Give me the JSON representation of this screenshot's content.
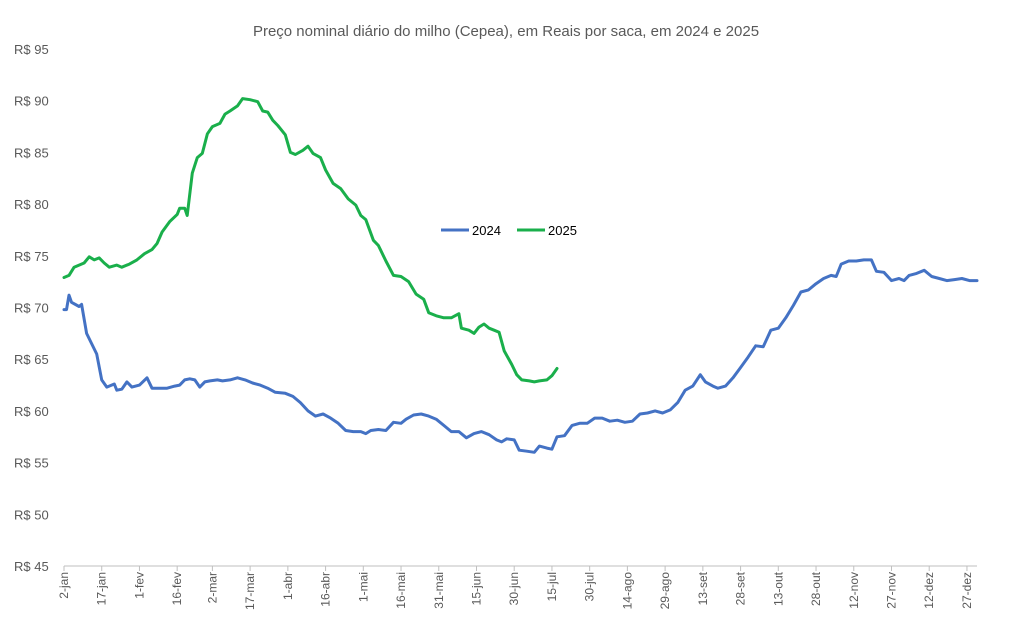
{
  "chart_data": {
    "type": "line",
    "title": "Preço nominal diário do milho (Cepea), em Reais por saca, em 2024 e 2025",
    "xlabel": "",
    "ylabel": "",
    "ylim": [
      45,
      95
    ],
    "y_ticks": [
      95,
      90,
      85,
      80,
      75,
      70,
      65,
      60,
      55,
      50,
      45
    ],
    "y_tick_prefix": "R$ ",
    "x_axis": "day of year (2-jan to 31-dez)",
    "x_ticks": [
      "2-jan",
      "17-jan",
      "1-fev",
      "16-fev",
      "2-mar",
      "17-mar",
      "1-abr",
      "16-abr",
      "1-mai",
      "16-mai",
      "31-mai",
      "15-jun",
      "30-jun",
      "15-jul",
      "30-jul",
      "14-ago",
      "29-ago",
      "13-set",
      "28-set",
      "13-out",
      "28-out",
      "12-nov",
      "27-nov",
      "12-dez",
      "27-dez"
    ],
    "legend_position": "center",
    "grid": false,
    "series": [
      {
        "name": "2024",
        "color": "#4472C4",
        "points": [
          [
            "2-jan",
            69.8
          ],
          [
            "3-jan",
            69.8
          ],
          [
            "4-jan",
            71.2
          ],
          [
            "5-jan",
            70.5
          ],
          [
            "8-jan",
            70.1
          ],
          [
            "9-jan",
            70.3
          ],
          [
            "11-jan",
            67.5
          ],
          [
            "15-jan",
            65.5
          ],
          [
            "17-jan",
            63.0
          ],
          [
            "19-jan",
            62.3
          ],
          [
            "22-jan",
            62.6
          ],
          [
            "23-jan",
            62.0
          ],
          [
            "25-jan",
            62.1
          ],
          [
            "27-jan",
            62.8
          ],
          [
            "29-jan",
            62.3
          ],
          [
            "1-fev",
            62.5
          ],
          [
            "4-fev",
            63.2
          ],
          [
            "6-fev",
            62.2
          ],
          [
            "9-fev",
            62.2
          ],
          [
            "12-fev",
            62.2
          ],
          [
            "15-fev",
            62.4
          ],
          [
            "17-fev",
            62.5
          ],
          [
            "19-fev",
            63.0
          ],
          [
            "21-fev",
            63.1
          ],
          [
            "23-fev",
            63.0
          ],
          [
            "25-fev",
            62.3
          ],
          [
            "27-fev",
            62.8
          ],
          [
            "1-mar",
            62.9
          ],
          [
            "4-mar",
            63.0
          ],
          [
            "6-mar",
            62.9
          ],
          [
            "9-mar",
            63.0
          ],
          [
            "12-mar",
            63.2
          ],
          [
            "15-mar",
            63.0
          ],
          [
            "18-mar",
            62.7
          ],
          [
            "21-mar",
            62.5
          ],
          [
            "24-mar",
            62.2
          ],
          [
            "27-mar",
            61.8
          ],
          [
            "31-mar",
            61.7
          ],
          [
            "3-abr",
            61.4
          ],
          [
            "6-abr",
            60.8
          ],
          [
            "9-abr",
            60.0
          ],
          [
            "12-abr",
            59.5
          ],
          [
            "15-abr",
            59.7
          ],
          [
            "18-abr",
            59.3
          ],
          [
            "21-abr",
            58.8
          ],
          [
            "24-abr",
            58.1
          ],
          [
            "27-abr",
            58.0
          ],
          [
            "30-abr",
            58.0
          ],
          [
            "2-mai",
            57.8
          ],
          [
            "4-mai",
            58.1
          ],
          [
            "7-mai",
            58.2
          ],
          [
            "10-mai",
            58.1
          ],
          [
            "13-mai",
            58.9
          ],
          [
            "16-mai",
            58.8
          ],
          [
            "18-mai",
            59.2
          ],
          [
            "21-mai",
            59.6
          ],
          [
            "24-mai",
            59.7
          ],
          [
            "27-mai",
            59.5
          ],
          [
            "30-mai",
            59.2
          ],
          [
            "2-jun",
            58.6
          ],
          [
            "5-jun",
            58.0
          ],
          [
            "8-jun",
            58.0
          ],
          [
            "11-jun",
            57.4
          ],
          [
            "14-jun",
            57.8
          ],
          [
            "17-jun",
            58.0
          ],
          [
            "20-jun",
            57.7
          ],
          [
            "23-jun",
            57.2
          ],
          [
            "25-jun",
            57.0
          ],
          [
            "27-jun",
            57.3
          ],
          [
            "30-jun",
            57.2
          ],
          [
            "2-jul",
            56.2
          ],
          [
            "5-jul",
            56.1
          ],
          [
            "8-jul",
            56.0
          ],
          [
            "10-jul",
            56.6
          ],
          [
            "13-jul",
            56.4
          ],
          [
            "15-jul",
            56.3
          ],
          [
            "17-jul",
            57.5
          ],
          [
            "20-jul",
            57.6
          ],
          [
            "23-jul",
            58.6
          ],
          [
            "26-jul",
            58.8
          ],
          [
            "29-jul",
            58.8
          ],
          [
            "1-ago",
            59.3
          ],
          [
            "4-ago",
            59.3
          ],
          [
            "7-ago",
            59.0
          ],
          [
            "10-ago",
            59.1
          ],
          [
            "13-ago",
            58.9
          ],
          [
            "16-ago",
            59.0
          ],
          [
            "19-ago",
            59.7
          ],
          [
            "22-ago",
            59.8
          ],
          [
            "25-ago",
            60.0
          ],
          [
            "28-ago",
            59.8
          ],
          [
            "31-ago",
            60.1
          ],
          [
            "3-set",
            60.8
          ],
          [
            "6-set",
            62.0
          ],
          [
            "9-set",
            62.4
          ],
          [
            "12-set",
            63.5
          ],
          [
            "14-set",
            62.8
          ],
          [
            "17-set",
            62.4
          ],
          [
            "19-set",
            62.2
          ],
          [
            "22-set",
            62.4
          ],
          [
            "25-set",
            63.2
          ],
          [
            "28-set",
            64.2
          ],
          [
            "1-out",
            65.2
          ],
          [
            "4-out",
            66.3
          ],
          [
            "7-out",
            66.2
          ],
          [
            "10-out",
            67.8
          ],
          [
            "13-out",
            68.0
          ],
          [
            "16-out",
            69.0
          ],
          [
            "19-out",
            70.2
          ],
          [
            "22-out",
            71.5
          ],
          [
            "25-out",
            71.7
          ],
          [
            "28-out",
            72.3
          ],
          [
            "31-out",
            72.8
          ],
          [
            "3-nov",
            73.1
          ],
          [
            "5-nov",
            73.0
          ],
          [
            "7-nov",
            74.2
          ],
          [
            "10-nov",
            74.5
          ],
          [
            "13-nov",
            74.5
          ],
          [
            "16-nov",
            74.6
          ],
          [
            "19-nov",
            74.6
          ],
          [
            "21-nov",
            73.5
          ],
          [
            "24-nov",
            73.4
          ],
          [
            "27-nov",
            72.6
          ],
          [
            "30-nov",
            72.8
          ],
          [
            "2-dez",
            72.6
          ],
          [
            "4-dez",
            73.1
          ],
          [
            "7-dez",
            73.3
          ],
          [
            "10-dez",
            73.6
          ],
          [
            "13-dez",
            73.0
          ],
          [
            "16-dez",
            72.8
          ],
          [
            "19-dez",
            72.6
          ],
          [
            "22-dez",
            72.7
          ],
          [
            "25-dez",
            72.8
          ],
          [
            "28-dez",
            72.6
          ],
          [
            "31-dez",
            72.6
          ]
        ]
      },
      {
        "name": "2025",
        "color": "#1AAF4B",
        "points": [
          [
            "2-jan",
            72.9
          ],
          [
            "4-jan",
            73.1
          ],
          [
            "6-jan",
            73.9
          ],
          [
            "8-jan",
            74.1
          ],
          [
            "10-jan",
            74.3
          ],
          [
            "12-jan",
            74.9
          ],
          [
            "14-jan",
            74.6
          ],
          [
            "16-jan",
            74.8
          ],
          [
            "18-jan",
            74.3
          ],
          [
            "20-jan",
            73.9
          ],
          [
            "23-jan",
            74.1
          ],
          [
            "25-jan",
            73.9
          ],
          [
            "28-jan",
            74.2
          ],
          [
            "31-jan",
            74.6
          ],
          [
            "3-fev",
            75.2
          ],
          [
            "6-fev",
            75.6
          ],
          [
            "8-fev",
            76.2
          ],
          [
            "10-fev",
            77.3
          ],
          [
            "13-fev",
            78.3
          ],
          [
            "16-fev",
            79.0
          ],
          [
            "17-fev",
            79.6
          ],
          [
            "19-fev",
            79.6
          ],
          [
            "20-fev",
            78.9
          ],
          [
            "22-fev",
            83.0
          ],
          [
            "24-fev",
            84.5
          ],
          [
            "26-fev",
            84.9
          ],
          [
            "28-fev",
            86.8
          ],
          [
            "2-mar",
            87.5
          ],
          [
            "5-mar",
            87.8
          ],
          [
            "7-mar",
            88.7
          ],
          [
            "9-mar",
            89.0
          ],
          [
            "12-mar",
            89.5
          ],
          [
            "14-mar",
            90.2
          ],
          [
            "17-mar",
            90.1
          ],
          [
            "20-mar",
            89.9
          ],
          [
            "22-mar",
            89.0
          ],
          [
            "24-mar",
            88.9
          ],
          [
            "26-mar",
            88.1
          ],
          [
            "28-mar",
            87.6
          ],
          [
            "31-mar",
            86.7
          ],
          [
            "2-abr",
            85.0
          ],
          [
            "4-abr",
            84.8
          ],
          [
            "7-abr",
            85.2
          ],
          [
            "9-abr",
            85.6
          ],
          [
            "11-abr",
            84.9
          ],
          [
            "14-abr",
            84.5
          ],
          [
            "16-abr",
            83.3
          ],
          [
            "19-abr",
            82.0
          ],
          [
            "22-abr",
            81.5
          ],
          [
            "25-abr",
            80.5
          ],
          [
            "28-abr",
            79.9
          ],
          [
            "30-abr",
            78.9
          ],
          [
            "2-mai",
            78.5
          ],
          [
            "5-mai",
            76.5
          ],
          [
            "7-mai",
            76.0
          ],
          [
            "10-mai",
            74.5
          ],
          [
            "13-mai",
            73.1
          ],
          [
            "16-mai",
            73.0
          ],
          [
            "19-mai",
            72.5
          ],
          [
            "22-mai",
            71.3
          ],
          [
            "25-mai",
            70.8
          ],
          [
            "27-mai",
            69.5
          ],
          [
            "30-mai",
            69.2
          ],
          [
            "2-jun",
            69.0
          ],
          [
            "5-jun",
            69.0
          ],
          [
            "8-jun",
            69.4
          ],
          [
            "9-jun",
            68.0
          ],
          [
            "12-jun",
            67.8
          ],
          [
            "14-jun",
            67.5
          ],
          [
            "16-jun",
            68.1
          ],
          [
            "18-jun",
            68.4
          ],
          [
            "20-jun",
            68.0
          ],
          [
            "22-jun",
            67.8
          ],
          [
            "24-jun",
            67.6
          ],
          [
            "26-jun",
            65.8
          ],
          [
            "29-jun",
            64.5
          ],
          [
            "1-jul",
            63.5
          ],
          [
            "3-jul",
            63.0
          ],
          [
            "6-jul",
            62.9
          ],
          [
            "8-jul",
            62.8
          ],
          [
            "10-jul",
            62.9
          ],
          [
            "13-jul",
            63.0
          ],
          [
            "15-jul",
            63.4
          ],
          [
            "17-jul",
            64.1
          ]
        ]
      }
    ]
  }
}
